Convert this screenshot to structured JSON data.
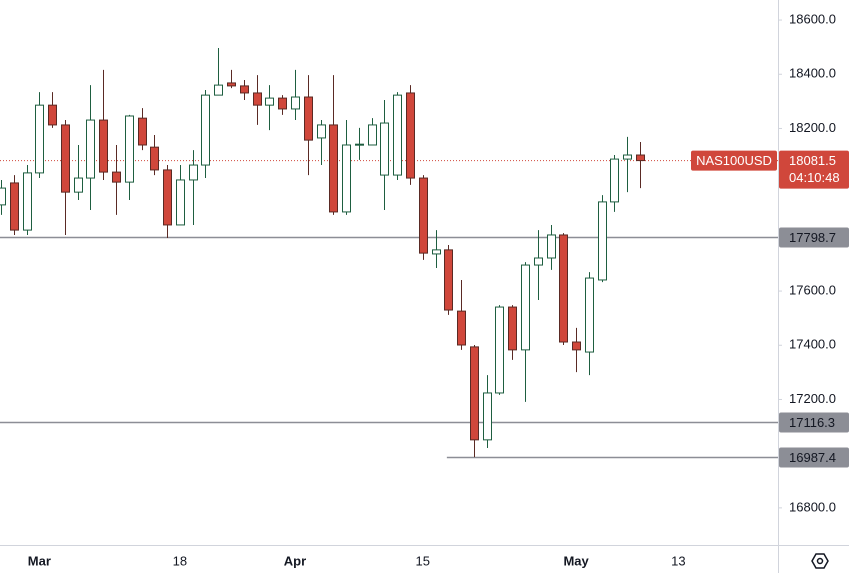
{
  "chart_data": {
    "type": "candlestick",
    "categories": [
      null,
      null,
      null,
      "Mar",
      null,
      null,
      null,
      null,
      null,
      null,
      null,
      null,
      null,
      null,
      "18",
      null,
      null,
      null,
      null,
      null,
      null,
      null,
      null,
      "Apr",
      null,
      null,
      null,
      null,
      null,
      null,
      null,
      null,
      null,
      "15",
      null,
      null,
      null,
      null,
      null,
      null,
      null,
      null,
      null,
      null,
      null,
      "May",
      null,
      null,
      null,
      null,
      null,
      null,
      null,
      "13"
    ],
    "open": [
      17918,
      17999,
      17825,
      18036,
      18286,
      18213,
      17965,
      18017,
      18231,
      18039,
      18002,
      18238,
      18131,
      18047,
      17844,
      18010,
      18065,
      18323,
      18368,
      18357,
      18331,
      18286,
      18312,
      18272,
      18316,
      18165,
      18213,
      17892,
      18139,
      18139,
      18028,
      18028,
      18331,
      18017,
      17737,
      17752,
      17526,
      17394,
      17051,
      17224,
      17541,
      17383,
      17696,
      17722,
      17807,
      17412,
      17375,
      17641,
      17929,
      18087,
      18102,
      null,
      null,
      null
    ],
    "high": [
      18010,
      18028,
      18065,
      18334,
      18334,
      18231,
      18139,
      18360,
      18416,
      18139,
      18250,
      18275,
      18176,
      18065,
      18065,
      18120,
      18342,
      18497,
      18416,
      18379,
      18397,
      18360,
      18323,
      18416,
      18397,
      18231,
      18397,
      18231,
      18202,
      18238,
      18305,
      18334,
      18360,
      18028,
      17825,
      17770,
      17641,
      17401,
      17290,
      17548,
      17548,
      17707,
      17825,
      17844,
      17814,
      17464,
      17670,
      17954,
      18102,
      18169,
      18150,
      null,
      null,
      null
    ],
    "low": [
      17881,
      17807,
      17807,
      18017,
      18202,
      17807,
      17936,
      17899,
      18010,
      17881,
      17936,
      18120,
      18028,
      17796,
      17844,
      17844,
      18017,
      18323,
      18349,
      18305,
      18213,
      18194,
      18250,
      18231,
      18028,
      18065,
      17881,
      17881,
      18084,
      18139,
      17899,
      18010,
      17992,
      17715,
      17685,
      17512,
      17383,
      16987.4,
      17021,
      17217,
      17346,
      17191,
      17567,
      17678,
      17401,
      17301,
      17290,
      17633,
      17892,
      17965,
      17980,
      null,
      null,
      null
    ],
    "close": [
      17980,
      17825,
      18036,
      18286,
      18213,
      17965,
      18017,
      18231,
      18039,
      18002,
      18246,
      18139,
      18047,
      17844,
      18010,
      18065,
      18323,
      18360,
      18357,
      18331,
      18286,
      18312,
      18272,
      18316,
      18157,
      18213,
      17892,
      18139,
      18142,
      18213,
      18220,
      18323,
      18017,
      17740,
      17752,
      17530,
      17401,
      17051,
      17224,
      17541,
      17383,
      17696,
      17722,
      17807,
      17412,
      17383,
      17648,
      17929,
      18087,
      18102,
      18081.5,
      null,
      null,
      null
    ],
    "up_color": "#1e5e40",
    "down_color": "#d0473b",
    "ylim": [
      16663,
      18674
    ],
    "yticks": [
      {
        "value": 16800,
        "label": "16800.0"
      },
      {
        "value": 17000,
        "label": "17000.0"
      },
      {
        "value": 17200,
        "label": "17200.0"
      },
      {
        "value": 17400,
        "label": "17400.0"
      },
      {
        "value": 17600,
        "label": "17600.0"
      },
      {
        "value": 17800,
        "label": "17800.0"
      },
      {
        "value": 18000,
        "label": "18000.0"
      },
      {
        "value": 18200,
        "label": "18200.0"
      },
      {
        "value": 18400,
        "label": "18400.0"
      },
      {
        "value": 18600,
        "label": "18600.0"
      }
    ],
    "levels": [
      {
        "value": 17798.7
      },
      {
        "value": 17116.3
      },
      {
        "value": 16987.4,
        "from": 37
      }
    ],
    "symbol": "NAS100USD",
    "last_price": 18081.5,
    "countdown": "04:10:48"
  }
}
